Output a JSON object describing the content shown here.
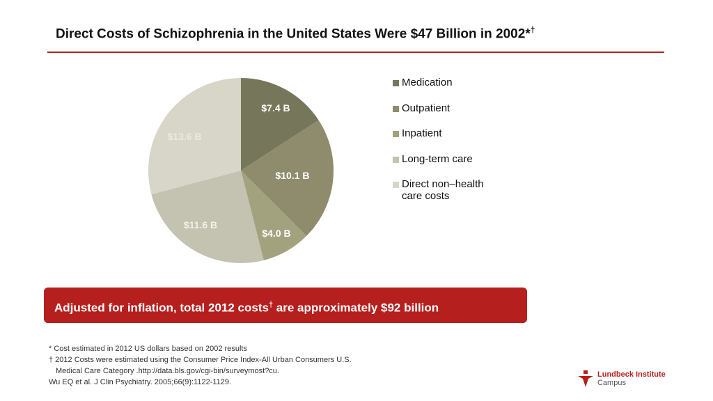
{
  "header": {
    "title": "Direct Costs of Schizophrenia in the United States Were $47 Billion in 2002*",
    "title_sup": "†"
  },
  "chart_data": {
    "type": "pie",
    "categories": [
      "Medication",
      "Outpatient",
      "Inpatient",
      "Long-term care",
      "Direct non–health care costs"
    ],
    "values": [
      7.4,
      10.1,
      4.0,
      11.6,
      13.6
    ],
    "data_labels": [
      "$7.4 B",
      "$10.1 B",
      "$4.0 B",
      "$11.6 B",
      "$13.6 B"
    ],
    "colors": [
      "#76775a",
      "#8e8c6c",
      "#a3a27f",
      "#c4c2b0",
      "#d8d6c9"
    ],
    "label_colors": [
      "#ffffff",
      "#ffffff",
      "#ffffff",
      "#f2f1ea",
      "#eceae0"
    ],
    "legend": [
      "Medication",
      "Outpatient",
      "Inpatient",
      "Long-term care",
      "Direct non–health care costs"
    ],
    "legend_placement": "right",
    "start": "top",
    "direction": "clockwise"
  },
  "banner": {
    "text": "Adjusted for inflation, total 2012 costs",
    "sup": "†",
    "text2": " are approximately $92 billion",
    "color": "#b5201f"
  },
  "footnotes": [
    "*  Cost estimated in 2012 US dollars based on 2002 results",
    "† 2012 Costs were estimated using the Consumer Price Index-All Urban Consumers U.S.",
    "   Medical Care Category .http://data.bls.gov/cgi-bin/surveymost?cu.",
    "Wu EQ et al. J Clin Psychiatry. 2005;66(9):1122-1129."
  ],
  "logo": {
    "line1": "Lundbeck Institute",
    "line2": "Campus"
  }
}
